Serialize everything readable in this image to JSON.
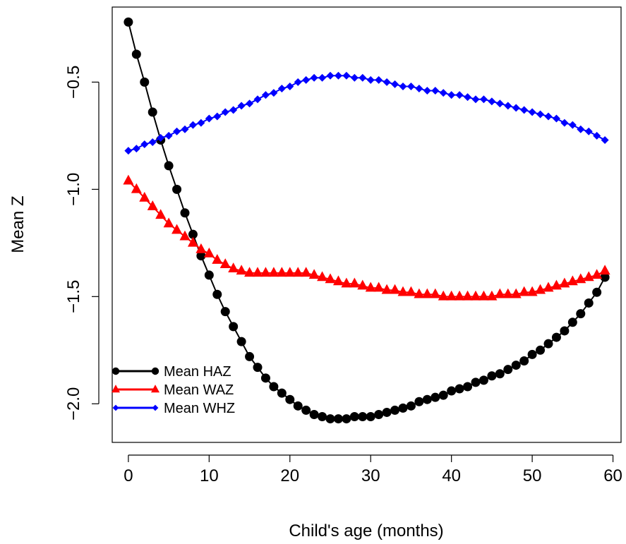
{
  "chart_data": {
    "type": "line",
    "xlabel": "Child's age (months)",
    "ylabel": "Mean Z",
    "xlim": [
      -2,
      61
    ],
    "ylim": [
      -2.18,
      -0.15
    ],
    "xticks": [
      0,
      10,
      20,
      30,
      40,
      50,
      60
    ],
    "xtick_labels": [
      "0",
      "10",
      "20",
      "30",
      "40",
      "50",
      "60"
    ],
    "yticks": [
      -0.5,
      -1.0,
      -1.5,
      -2.0
    ],
    "ytick_labels": [
      "−0.5",
      "−1.0",
      "−1.5",
      "−2.0"
    ],
    "grid": false,
    "legend_position": "bottom-left",
    "x": [
      0,
      1,
      2,
      3,
      4,
      5,
      6,
      7,
      8,
      9,
      10,
      11,
      12,
      13,
      14,
      15,
      16,
      17,
      18,
      19,
      20,
      21,
      22,
      23,
      24,
      25,
      26,
      27,
      28,
      29,
      30,
      31,
      32,
      33,
      34,
      35,
      36,
      37,
      38,
      39,
      40,
      41,
      42,
      43,
      44,
      45,
      46,
      47,
      48,
      49,
      50,
      51,
      52,
      53,
      54,
      55,
      56,
      57,
      58,
      59
    ],
    "series": [
      {
        "name": "Mean HAZ",
        "color": "#000000",
        "marker": "circle",
        "values": [
          -0.22,
          -0.37,
          -0.5,
          -0.64,
          -0.77,
          -0.89,
          -1.0,
          -1.11,
          -1.21,
          -1.31,
          -1.4,
          -1.49,
          -1.57,
          -1.64,
          -1.71,
          -1.78,
          -1.83,
          -1.88,
          -1.92,
          -1.95,
          -1.98,
          -2.01,
          -2.03,
          -2.05,
          -2.06,
          -2.07,
          -2.07,
          -2.07,
          -2.06,
          -2.06,
          -2.06,
          -2.05,
          -2.04,
          -2.03,
          -2.02,
          -2.01,
          -1.99,
          -1.98,
          -1.97,
          -1.96,
          -1.94,
          -1.93,
          -1.92,
          -1.9,
          -1.89,
          -1.87,
          -1.86,
          -1.84,
          -1.82,
          -1.8,
          -1.77,
          -1.75,
          -1.72,
          -1.69,
          -1.66,
          -1.62,
          -1.58,
          -1.53,
          -1.48,
          -1.41
        ]
      },
      {
        "name": "Mean WAZ",
        "color": "#ff0000",
        "marker": "triangle",
        "values": [
          -0.96,
          -1.0,
          -1.04,
          -1.08,
          -1.12,
          -1.16,
          -1.19,
          -1.22,
          -1.25,
          -1.28,
          -1.3,
          -1.33,
          -1.35,
          -1.37,
          -1.38,
          -1.39,
          -1.39,
          -1.39,
          -1.39,
          -1.39,
          -1.39,
          -1.39,
          -1.39,
          -1.4,
          -1.41,
          -1.42,
          -1.43,
          -1.44,
          -1.44,
          -1.45,
          -1.46,
          -1.46,
          -1.47,
          -1.47,
          -1.48,
          -1.48,
          -1.49,
          -1.49,
          -1.49,
          -1.5,
          -1.5,
          -1.5,
          -1.5,
          -1.5,
          -1.5,
          -1.5,
          -1.49,
          -1.49,
          -1.49,
          -1.48,
          -1.48,
          -1.47,
          -1.46,
          -1.45,
          -1.44,
          -1.43,
          -1.42,
          -1.41,
          -1.4,
          -1.38
        ]
      },
      {
        "name": "Mean WHZ",
        "color": "#0000ff",
        "marker": "diamond",
        "values": [
          -0.82,
          -0.81,
          -0.79,
          -0.78,
          -0.76,
          -0.75,
          -0.73,
          -0.72,
          -0.7,
          -0.69,
          -0.67,
          -0.66,
          -0.64,
          -0.63,
          -0.61,
          -0.6,
          -0.58,
          -0.56,
          -0.55,
          -0.53,
          -0.52,
          -0.5,
          -0.49,
          -0.48,
          -0.48,
          -0.47,
          -0.47,
          -0.47,
          -0.48,
          -0.48,
          -0.49,
          -0.49,
          -0.5,
          -0.51,
          -0.52,
          -0.52,
          -0.53,
          -0.54,
          -0.54,
          -0.55,
          -0.56,
          -0.56,
          -0.57,
          -0.58,
          -0.58,
          -0.59,
          -0.6,
          -0.61,
          -0.62,
          -0.63,
          -0.64,
          -0.65,
          -0.66,
          -0.67,
          -0.69,
          -0.7,
          -0.72,
          -0.73,
          -0.75,
          -0.77
        ]
      }
    ]
  }
}
